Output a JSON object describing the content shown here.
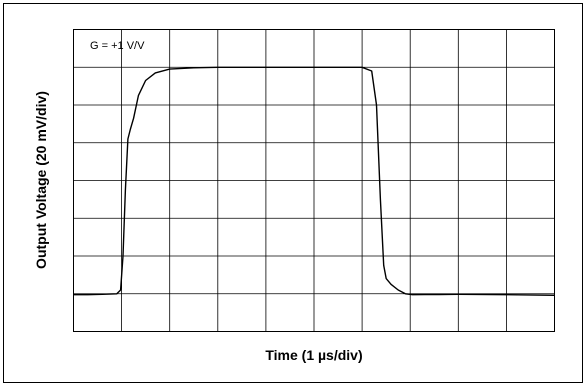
{
  "chart_data": {
    "type": "line",
    "title": "",
    "annotation": "G = +1 V/V",
    "xlabel": "Time (1 µs/div)",
    "ylabel": "Output Voltage (20 mV/div)",
    "x_units": "µs",
    "y_units": "mV",
    "xlim": [
      0,
      10
    ],
    "ylim": [
      0,
      160
    ],
    "grid": true,
    "x_divisions": 10,
    "y_divisions": 8,
    "series": [
      {
        "x": [
          0,
          0.3,
          0.6,
          0.9,
          0.98,
          1.03,
          1.08,
          1.13,
          1.18,
          1.25,
          1.35,
          1.5,
          1.7,
          2.0,
          2.5,
          3.0,
          4.0,
          5.0,
          6.0,
          6.2,
          6.3,
          6.38,
          6.45,
          6.5,
          6.6,
          6.75,
          6.9,
          7.05,
          7.3,
          7.6,
          8.0,
          9.0,
          10.0
        ],
        "y": [
          19.5,
          19.5,
          19.7,
          20.0,
          22,
          40,
          75,
          102,
          107,
          113,
          125,
          133,
          137,
          139,
          139.7,
          140,
          140,
          140,
          140,
          138,
          120,
          70,
          35,
          28,
          25,
          22,
          20,
          19.5,
          19.6,
          19.6,
          19.7,
          19.5,
          19.2
        ]
      }
    ]
  }
}
